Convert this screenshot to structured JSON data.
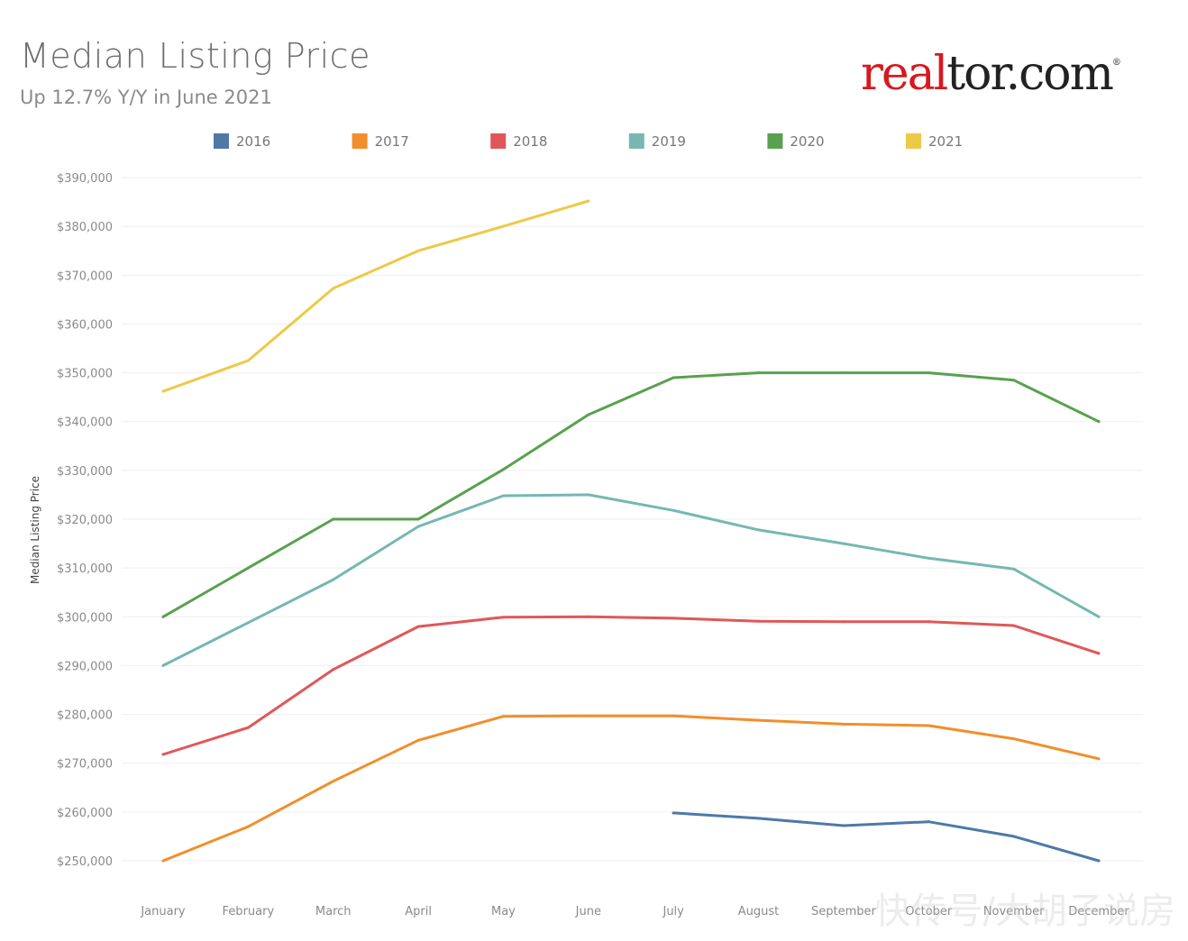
{
  "header": {
    "title": "Median Listing Price",
    "subtitle": "Up 12.7% Y/Y in June 2021",
    "logo_text": "realtor.com",
    "logo_red_part": "real",
    "logo_black_part": "tor.com",
    "logo_mark": "®"
  },
  "watermark": "快传号/大胡子说房",
  "chart_data": {
    "type": "line",
    "title": "Median Listing Price",
    "subtitle": "Up 12.7% Y/Y in June 2021",
    "xlabel": "",
    "ylabel": "Median Listing Price",
    "categories": [
      "January",
      "February",
      "March",
      "April",
      "May",
      "June",
      "July",
      "August",
      "September",
      "October",
      "November",
      "December"
    ],
    "ylim": [
      250000,
      390000
    ],
    "yticks": [
      250000,
      260000,
      270000,
      280000,
      290000,
      300000,
      310000,
      320000,
      330000,
      340000,
      350000,
      360000,
      370000,
      380000,
      390000
    ],
    "ytick_labels": [
      "$250,000",
      "$260,000",
      "$270,000",
      "$280,000",
      "$290,000",
      "$300,000",
      "$310,000",
      "$320,000",
      "$330,000",
      "$340,000",
      "$350,000",
      "$360,000",
      "$370,000",
      "$380,000",
      "$390,000"
    ],
    "grid": true,
    "legend_position": "top",
    "series": [
      {
        "name": "2016",
        "color": "#4e79a7",
        "values": [
          null,
          null,
          null,
          null,
          null,
          null,
          259800,
          258700,
          257200,
          258000,
          255000,
          250000
        ]
      },
      {
        "name": "2017",
        "color": "#f28e2b",
        "values": [
          250000,
          257000,
          266300,
          274700,
          279600,
          279700,
          279700,
          278800,
          278000,
          277700,
          275000,
          270900
        ]
      },
      {
        "name": "2018",
        "color": "#e15759",
        "values": [
          271800,
          277300,
          289200,
          298000,
          299900,
          300000,
          299700,
          299100,
          299000,
          299000,
          298200,
          292500
        ]
      },
      {
        "name": "2019",
        "color": "#76b7b2",
        "values": [
          290000,
          298800,
          307600,
          318500,
          324800,
          325000,
          321800,
          317800,
          315000,
          312000,
          309800,
          300000
        ]
      },
      {
        "name": "2020",
        "color": "#59a14f",
        "values": [
          300000,
          310000,
          320000,
          320000,
          330200,
          341400,
          349000,
          350000,
          350000,
          350000,
          348500,
          340000
        ]
      },
      {
        "name": "2021",
        "color": "#edc948",
        "values": [
          346200,
          352500,
          367300,
          375000,
          380000,
          385200,
          null,
          null,
          null,
          null,
          null,
          null
        ]
      }
    ]
  }
}
